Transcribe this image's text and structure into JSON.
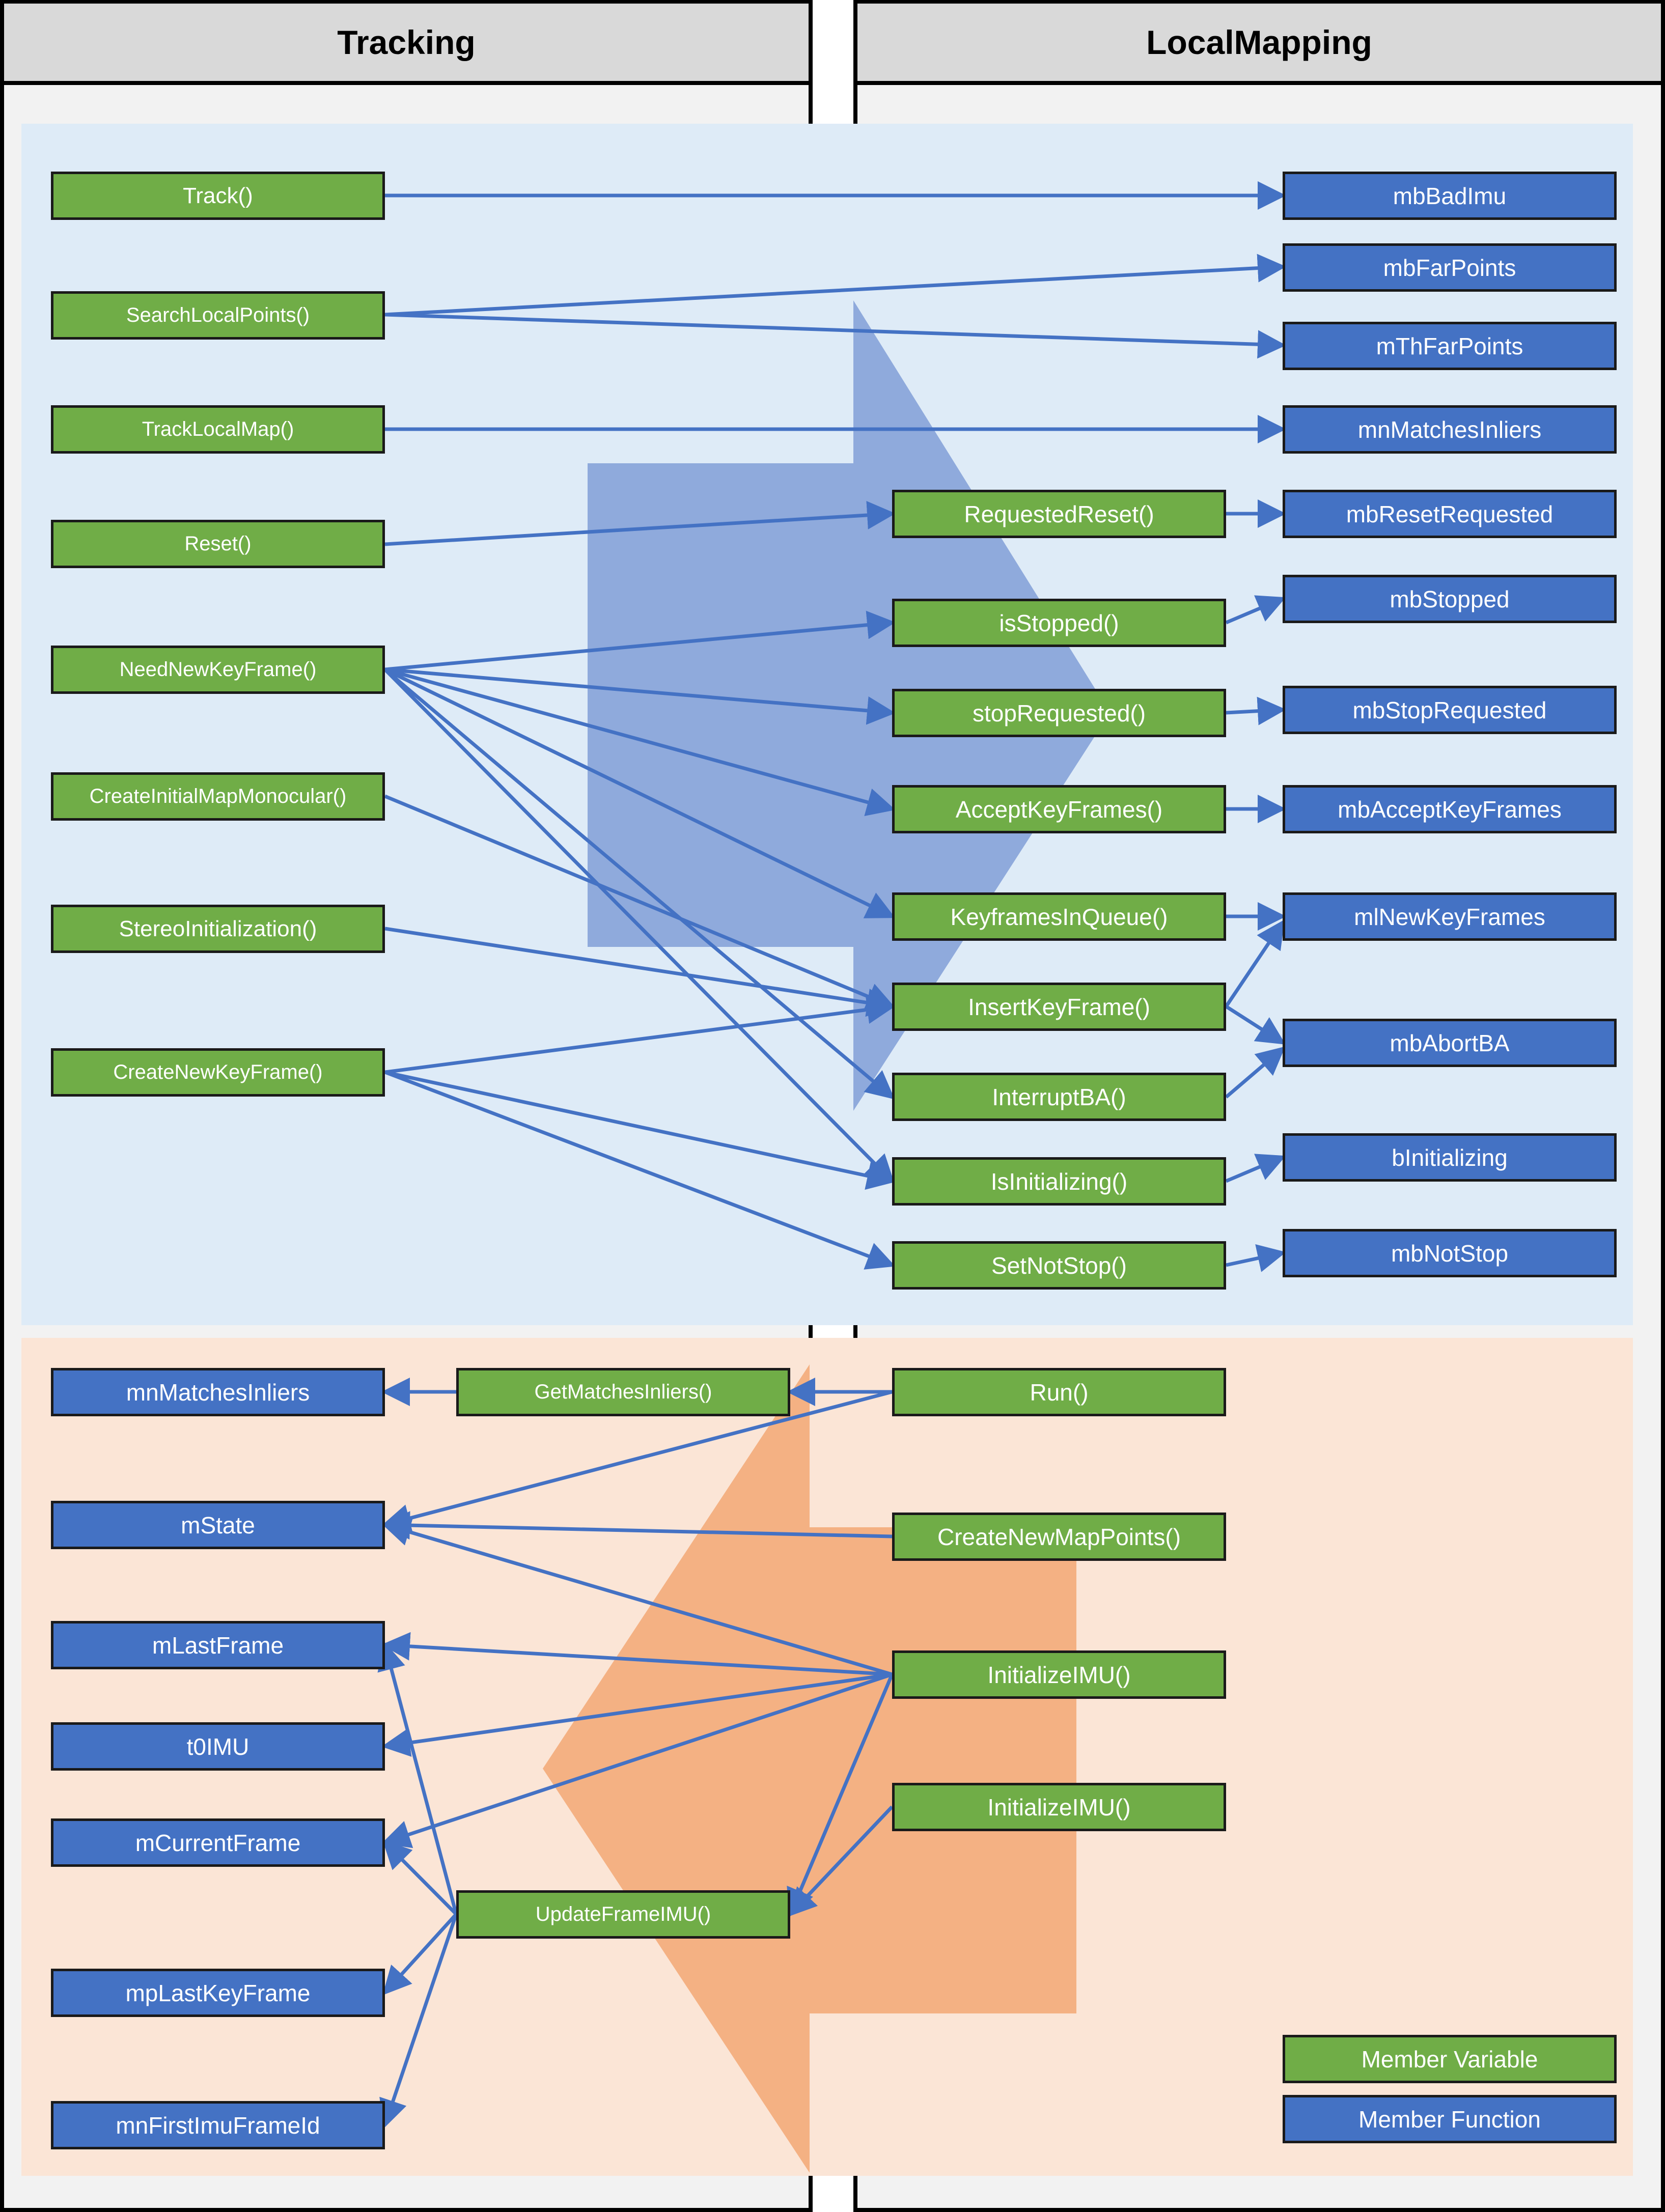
{
  "lanes": {
    "left_title": "Tracking",
    "right_title": "LocalMapping"
  },
  "colors": {
    "member_variable": "#70ad47",
    "member_function": "#4472c4",
    "connector": "#4472c4",
    "top_zone": "#deebf7",
    "bottom_zone": "#fbe5d6",
    "right_arrow": "#8faadc",
    "left_arrow": "#f4b183"
  },
  "nodes": {
    "track": "Track()",
    "search_local_points": "SearchLocalPoints()",
    "track_local_map": "TrackLocalMap()",
    "reset": "Reset()",
    "need_new_keyframe": "NeedNewKeyFrame()",
    "create_initial_map_monocular": "CreateInitialMapMonocular()",
    "stereo_initialization": "StereoInitialization()",
    "create_new_keyframe": "CreateNewKeyFrame()",
    "requested_reset": "RequestedReset()",
    "is_stopped": "isStopped()",
    "stop_requested": "stopRequested()",
    "accept_keyframes": "AcceptKeyFrames()",
    "keyframes_in_queue": "KeyframesInQueue()",
    "insert_keyframe": "InsertKeyFrame()",
    "interrupt_ba": "InterruptBA()",
    "is_initializing": "IsInitializing()",
    "set_not_stop": "SetNotStop()",
    "mb_bad_imu": "mbBadImu",
    "mb_far_points": "mbFarPoints",
    "m_th_far_points": "mThFarPoints",
    "mn_matches_inliers_r": "mnMatchesInliers",
    "mb_reset_requested": "mbResetRequested",
    "mb_stopped": "mbStopped",
    "mb_stop_requested": "mbStopRequested",
    "mb_accept_keyframes": "mbAcceptKeyFrames",
    "ml_new_keyframes": "mlNewKeyFrames",
    "mb_abort_ba": "mbAbortBA",
    "b_initializing": "bInitializing",
    "mb_not_stop": "mbNotStop",
    "mn_matches_inliers_l": "mnMatchesInliers",
    "m_state": "mState",
    "m_last_frame": "mLastFrame",
    "t0_imu": "t0IMU",
    "m_current_frame": "mCurrentFrame",
    "mp_last_keyframe": "mpLastKeyFrame",
    "mn_first_imu_frame_id": "mnFirstImuFrameId",
    "get_matches_inliers": "GetMatchesInliers()",
    "update_frame_imu": "UpdateFrameIMU()",
    "run": "Run()",
    "create_new_map_points": "CreateNewMapPoints()",
    "initialize_imu_1": "InitializeIMU()",
    "initialize_imu_2": "InitializeIMU()"
  },
  "legend": {
    "green_label": "Member Variable",
    "blue_label": "Member Function"
  }
}
